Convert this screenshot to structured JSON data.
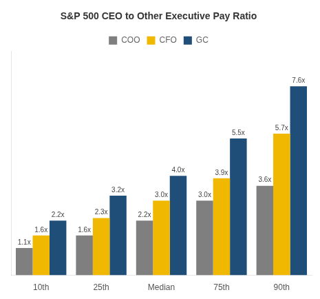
{
  "chart_data": {
    "type": "bar",
    "title": "S&P 500 CEO to Other Executive Pay Ratio",
    "categories": [
      "10th",
      "25th",
      "Median",
      "75th",
      "90th"
    ],
    "series": [
      {
        "name": "COO",
        "color": "#7f7f7f",
        "values": [
          1.1,
          1.6,
          2.2,
          3.0,
          3.6
        ],
        "value_labels": [
          "1.1x",
          "1.6x",
          "2.2x",
          "3.0x",
          "3.6x"
        ]
      },
      {
        "name": "CFO",
        "color": "#F0B800",
        "values": [
          1.6,
          2.3,
          3.0,
          3.9,
          5.7
        ],
        "value_labels": [
          "1.6x",
          "2.3x",
          "3.0x",
          "3.9x",
          "5.7x"
        ]
      },
      {
        "name": "GC",
        "color": "#1F4E79",
        "values": [
          2.2,
          3.2,
          4.0,
          5.5,
          7.6
        ],
        "value_labels": [
          "2.2x",
          "3.2x",
          "4.0x",
          "5.5x",
          "7.6x"
        ]
      }
    ],
    "ylim": [
      0,
      9.0
    ],
    "grid": false,
    "legend": "top",
    "data_labels": true,
    "tick_labels": "x"
  }
}
